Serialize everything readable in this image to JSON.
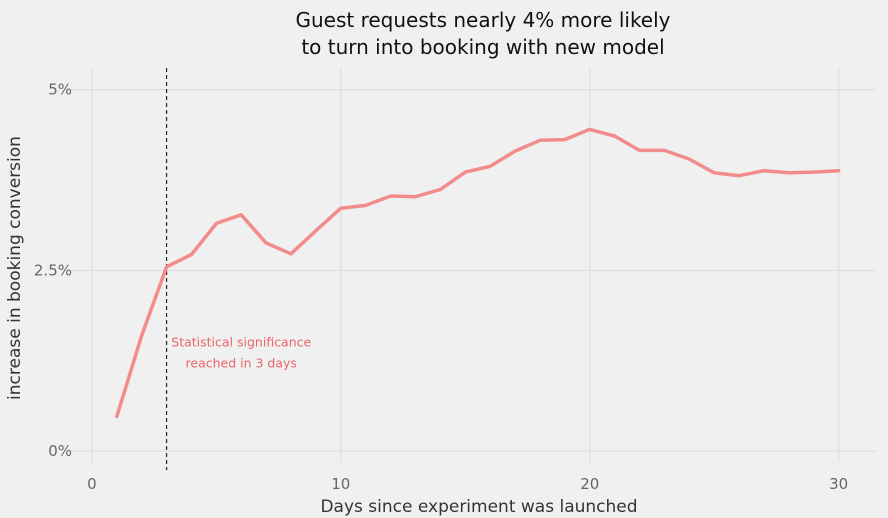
{
  "chart_data": {
    "type": "line",
    "title_lines": [
      "Guest requests nearly 4% more likely",
      "to  turn into booking with new model"
    ],
    "xlabel": "Days since experiment was launched",
    "ylabel": "increase in booking conversion",
    "xlim": [
      -1,
      31.5
    ],
    "ylim": [
      -0.15,
      5.3
    ],
    "x_ticks": [
      0,
      10,
      20,
      30
    ],
    "x_tick_labels": [
      "0",
      "10",
      "20",
      "30"
    ],
    "y_ticks": [
      0,
      2.5,
      5
    ],
    "y_tick_labels": [
      "0%",
      "2.5%",
      "5%"
    ],
    "grid": true,
    "colors": {
      "line": "#f28b8b",
      "annotation": "#e8656a",
      "grid": "#dcdcdc",
      "background": "#f0f0f0"
    },
    "series": [
      {
        "x": [
          1,
          2,
          3,
          4,
          5,
          6,
          7,
          8,
          9,
          10,
          11,
          12,
          13,
          14,
          15,
          16,
          17,
          18,
          19,
          20,
          21,
          22,
          23,
          24,
          25,
          26,
          27,
          28,
          29,
          30
        ],
        "values": [
          0.48,
          1.6,
          2.55,
          2.72,
          3.15,
          3.27,
          2.88,
          2.73,
          3.05,
          3.36,
          3.4,
          3.53,
          3.52,
          3.62,
          3.86,
          3.94,
          4.15,
          4.3,
          4.31,
          4.45,
          4.36,
          4.16,
          4.16,
          4.04,
          3.85,
          3.81,
          3.88,
          3.85,
          3.86,
          3.88
        ]
      }
    ],
    "reference_line": {
      "x": 3,
      "style": "dashed"
    },
    "annotation": {
      "lines": [
        "Statistical significance",
        "reached in 3 days"
      ],
      "x": 6,
      "y": 1.45
    }
  }
}
